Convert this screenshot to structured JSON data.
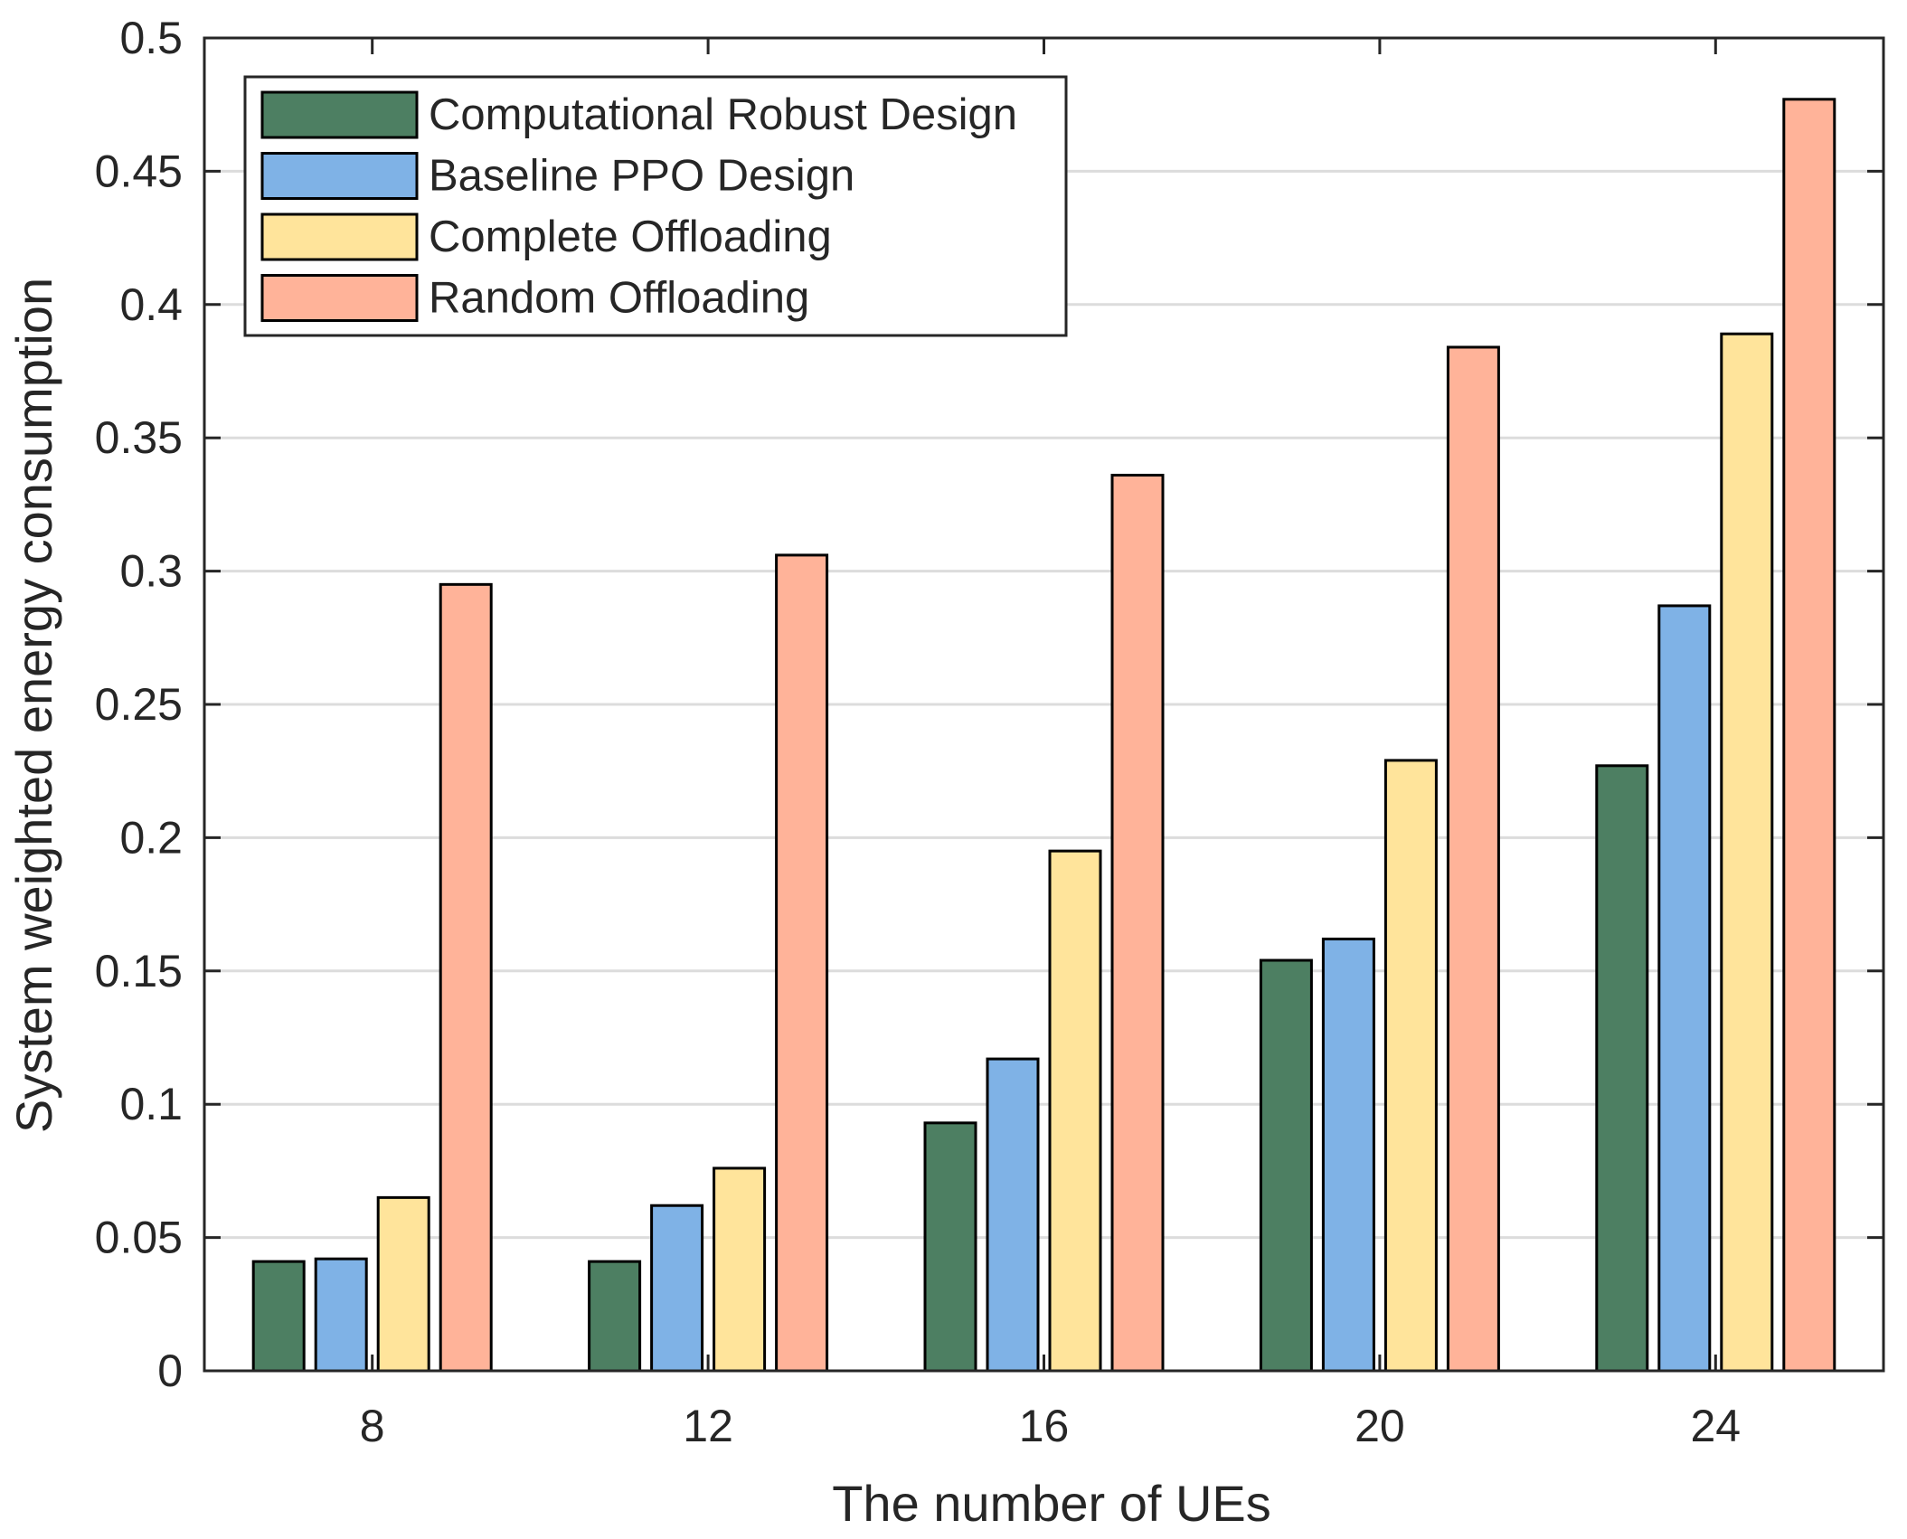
{
  "chart_data": {
    "type": "bar",
    "title": "",
    "xlabel": "The number of UEs",
    "ylabel": "System weighted energy consumption",
    "categories": [
      "8",
      "12",
      "16",
      "20",
      "24"
    ],
    "ylim": [
      0,
      0.5
    ],
    "yticks": [
      0,
      0.05,
      0.1,
      0.15,
      0.2,
      0.25,
      0.3,
      0.35,
      0.4,
      0.45,
      0.5
    ],
    "ytick_labels": [
      "0",
      "0.05",
      "0.1",
      "0.15",
      "0.2",
      "0.25",
      "0.3",
      "0.35",
      "0.4",
      "0.45",
      "0.5"
    ],
    "grid": "horizontal",
    "legend_position": "top-left",
    "series": [
      {
        "name": "Computational Robust Design",
        "color": "#4d7f62",
        "values": [
          0.041,
          0.041,
          0.093,
          0.154,
          0.227
        ]
      },
      {
        "name": "Baseline PPO Design",
        "color": "#7fb2e6",
        "values": [
          0.042,
          0.062,
          0.117,
          0.162,
          0.287
        ]
      },
      {
        "name": "Complete Offloading",
        "color": "#ffe49b",
        "values": [
          0.065,
          0.076,
          0.195,
          0.229,
          0.389
        ]
      },
      {
        "name": "Random Offloading",
        "color": "#ffb399",
        "values": [
          0.295,
          0.306,
          0.336,
          0.384,
          0.477
        ]
      }
    ]
  }
}
